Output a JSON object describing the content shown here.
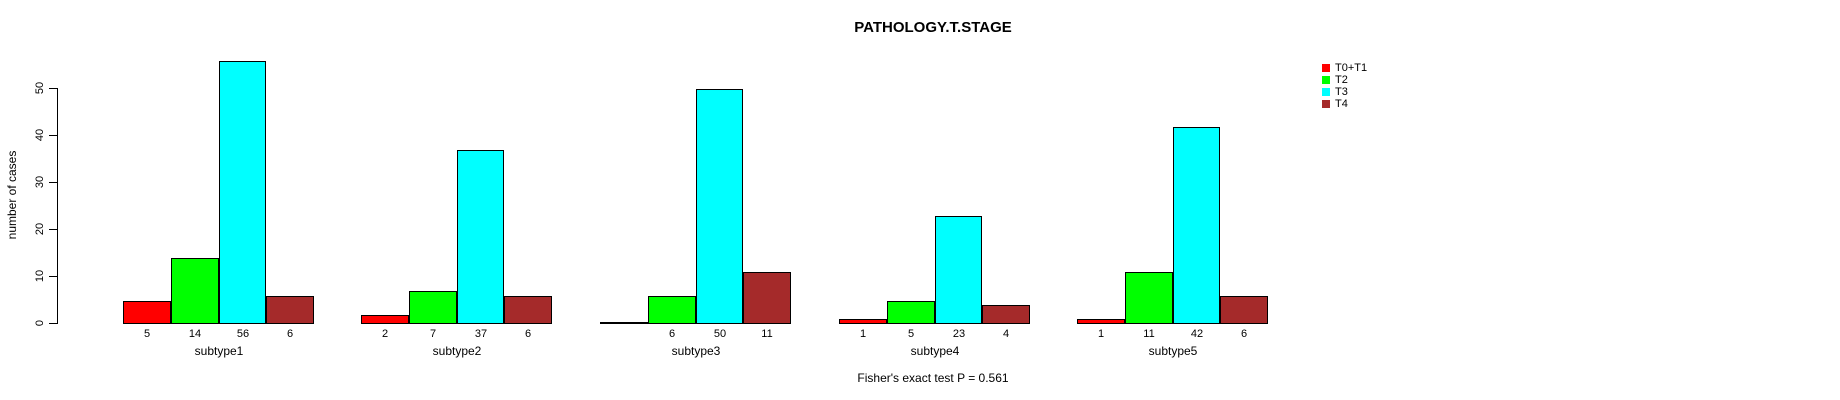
{
  "title": "PATHOLOGY.T.STAGE",
  "footer": "Fisher's exact test P = 0.561",
  "colors": {
    "background": "#FFFFFF",
    "axis": "#000000",
    "bar_border": "#000000"
  },
  "chart_data": {
    "type": "bar",
    "grouped": true,
    "title": "PATHOLOGY.T.STAGE",
    "xlabel": "",
    "ylabel": "number of cases",
    "categories": [
      "subtype1",
      "subtype2",
      "subtype3",
      "subtype4",
      "subtype5"
    ],
    "series": [
      {
        "name": "T0+T1",
        "color": "#FF0000",
        "values": [
          5,
          2,
          0,
          1,
          1
        ]
      },
      {
        "name": "T2",
        "color": "#00FF00",
        "values": [
          14,
          7,
          6,
          5,
          11
        ]
      },
      {
        "name": "T3",
        "color": "#00FFFF",
        "values": [
          56,
          37,
          50,
          23,
          42
        ]
      },
      {
        "name": "T4",
        "color": "#A52A2A",
        "values": [
          6,
          6,
          11,
          4,
          6
        ]
      }
    ],
    "bar_value_labels": [
      [
        "5",
        "14",
        "56",
        "6"
      ],
      [
        "2",
        "7",
        "37",
        "6"
      ],
      [
        "",
        "6",
        "50",
        "11"
      ],
      [
        "1",
        "5",
        "23",
        "4"
      ],
      [
        "1",
        "11",
        "42",
        "6"
      ]
    ],
    "yticks": [
      0,
      10,
      20,
      30,
      40,
      50
    ],
    "ylim": [
      0,
      56
    ],
    "grid": false,
    "legend_position": "top-right",
    "legend_entries": [
      "T0+T1",
      "T2",
      "T3",
      "T4"
    ],
    "annotation": "Fisher's exact test P = 0.561"
  }
}
